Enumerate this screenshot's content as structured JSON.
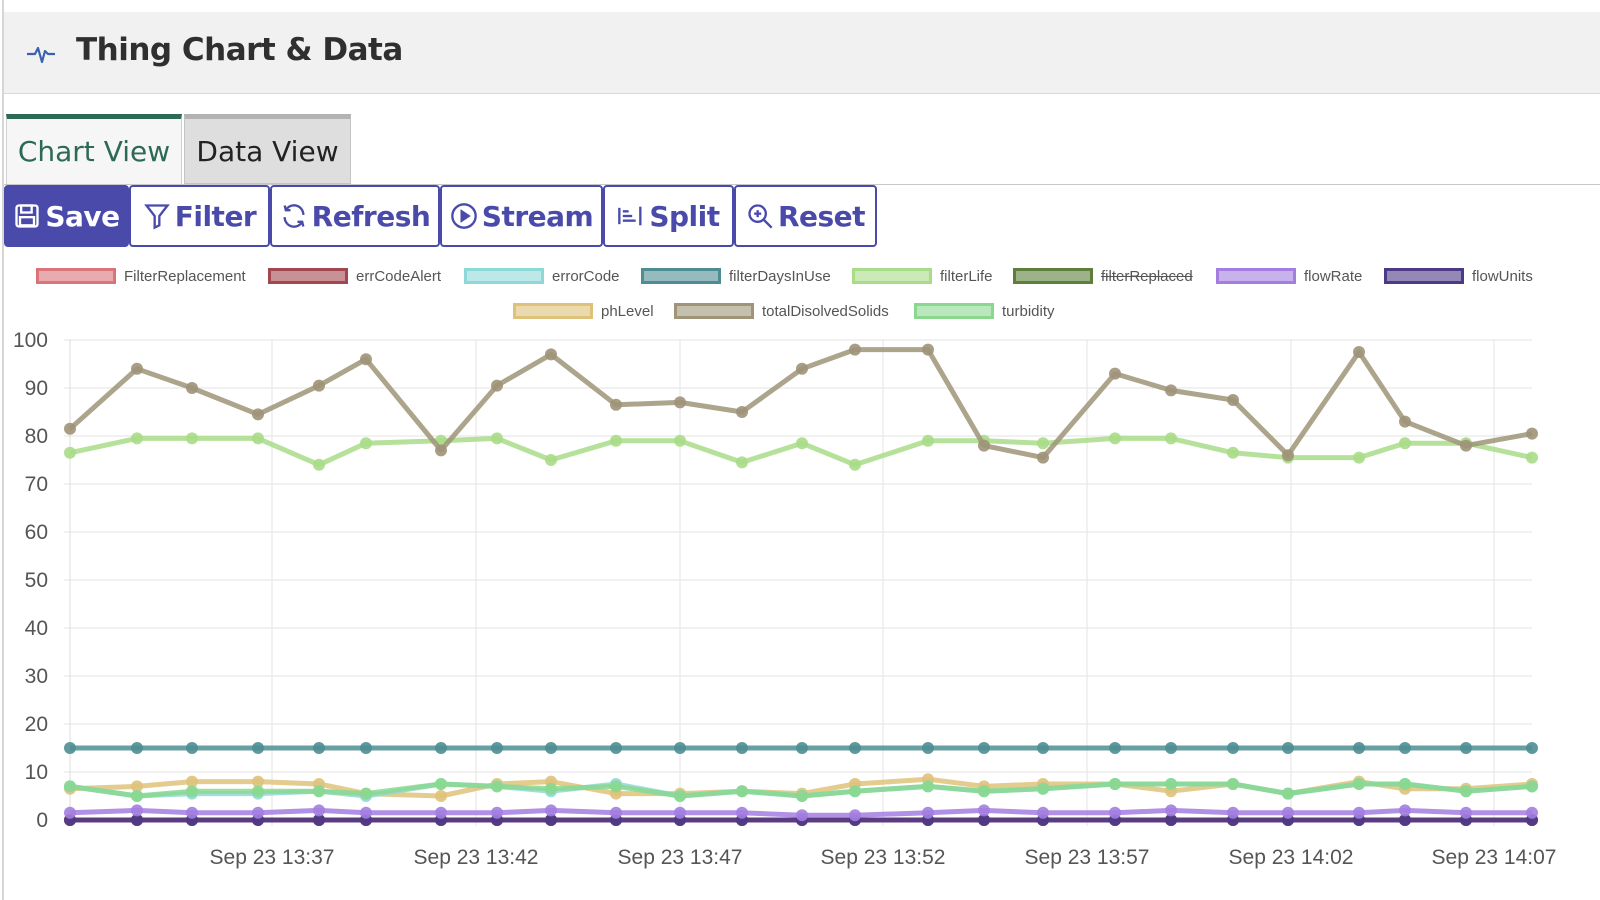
{
  "header": {
    "title": "Thing Chart & Data",
    "icon": "activity-pulse-icon"
  },
  "tabs": [
    {
      "label": "Chart View",
      "active": true
    },
    {
      "label": "Data View",
      "active": false
    }
  ],
  "toolbar": {
    "save": "Save",
    "filter": "Filter",
    "refresh": "Refresh",
    "stream": "Stream",
    "split": "Split",
    "reset": "Reset"
  },
  "colors": {
    "accent": "#4a4aab",
    "tab_active": "#2d6a55"
  },
  "chart_data": {
    "type": "line",
    "ylim": [
      0,
      100
    ],
    "yticks": [
      0,
      10,
      20,
      30,
      40,
      50,
      60,
      70,
      80,
      90,
      100
    ],
    "xtick_labels": [
      "Sep 23 13:37",
      "Sep 23 13:42",
      "Sep 23 13:47",
      "Sep 23 13:52",
      "Sep 23 13:57",
      "Sep 23 14:02",
      "Sep 23 14:07"
    ],
    "grid": true,
    "legend_position": "top",
    "series": [
      {
        "name": "FilterReplacement",
        "color": "#d9747a",
        "visible": true,
        "values": [
          0,
          0,
          0,
          0,
          0,
          0,
          0,
          0,
          0,
          0,
          0,
          0,
          0,
          0,
          0,
          0,
          0,
          0,
          0,
          0,
          0,
          0,
          0,
          0,
          0,
          0,
          0,
          0,
          0
        ]
      },
      {
        "name": "errCodeAlert",
        "color": "#a1474f",
        "visible": true,
        "values": [
          0,
          0,
          0,
          0,
          0,
          0,
          0,
          0,
          0,
          0,
          0,
          0,
          0,
          0,
          0,
          0,
          0,
          0,
          0,
          0,
          0,
          0,
          0,
          0,
          0,
          0,
          0,
          0,
          0
        ]
      },
      {
        "name": "errorCode",
        "color": "#8fd8d8",
        "visible": true,
        "values": [
          7,
          5,
          5.5,
          5.5,
          6,
          5,
          7.5,
          7,
          6,
          7.5,
          5,
          6,
          5,
          6,
          7,
          6,
          6.5,
          7.5,
          7.5,
          7.5,
          5.5,
          7.5,
          7.5,
          6,
          7
        ]
      },
      {
        "name": "filterDaysInUse",
        "color": "#4e8e92",
        "visible": true,
        "values": [
          15,
          15,
          15,
          15,
          15,
          15,
          15,
          15,
          15,
          15,
          15,
          15,
          15,
          15,
          15,
          15,
          15,
          15,
          15,
          15,
          15,
          15,
          15,
          15,
          15
        ]
      },
      {
        "name": "filterLife",
        "color": "#a9dc88",
        "visible": true,
        "values": [
          76.5,
          79.5,
          79.5,
          79.5,
          74,
          78.5,
          79,
          79.5,
          75,
          79,
          79,
          74.5,
          78.5,
          74,
          79,
          79,
          78.5,
          79.5,
          79.5,
          76.5,
          75.5,
          75.5,
          78.5,
          78.5,
          75.5
        ]
      },
      {
        "name": "filterReplaced",
        "color": "#5e7f3c",
        "visible": false,
        "values": []
      },
      {
        "name": "flowRate",
        "color": "#a37ee0",
        "visible": true,
        "values": [
          1.5,
          2,
          1.5,
          1.5,
          2,
          1.5,
          1.5,
          1.5,
          2,
          1.5,
          1.5,
          1.5,
          1,
          1,
          1.5,
          2,
          1.5,
          1.5,
          2,
          1.5,
          1.5,
          1.5,
          2,
          1.5,
          1.5
        ]
      },
      {
        "name": "flowUnits",
        "color": "#4d3a86",
        "visible": true,
        "values": [
          0,
          0,
          0,
          0,
          0,
          0,
          0,
          0,
          0,
          0,
          0,
          0,
          0,
          0,
          0,
          0,
          0,
          0,
          0,
          0,
          0,
          0,
          0,
          0,
          0
        ]
      },
      {
        "name": "phLevel",
        "color": "#dfc27a",
        "visible": true,
        "values": [
          6.5,
          7,
          8,
          8,
          7.5,
          5.5,
          5,
          7.5,
          8,
          5.5,
          5.5,
          6,
          5.5,
          7.5,
          8.5,
          7,
          7.5,
          7.5,
          6,
          7.5,
          5.5,
          8,
          6.5,
          6.5,
          7.5
        ]
      },
      {
        "name": "totalDisolvedSolids",
        "color": "#9f9478",
        "visible": true,
        "values": [
          81.5,
          94,
          90,
          84.5,
          90.5,
          96,
          77,
          90.5,
          97,
          86.5,
          87,
          85,
          94,
          98,
          98,
          78,
          75.5,
          93,
          89.5,
          87.5,
          76,
          97.5,
          83,
          78,
          80.5
        ]
      },
      {
        "name": "turbidity",
        "color": "#8ad88f",
        "visible": true,
        "values": [
          7,
          5,
          6,
          6,
          6,
          5.5,
          7.5,
          7,
          6.5,
          7,
          5,
          6,
          5,
          6,
          7,
          6,
          6.5,
          7.5,
          7.5,
          7.5,
          5.5,
          7.5,
          7.5,
          6,
          7
        ]
      }
    ]
  }
}
